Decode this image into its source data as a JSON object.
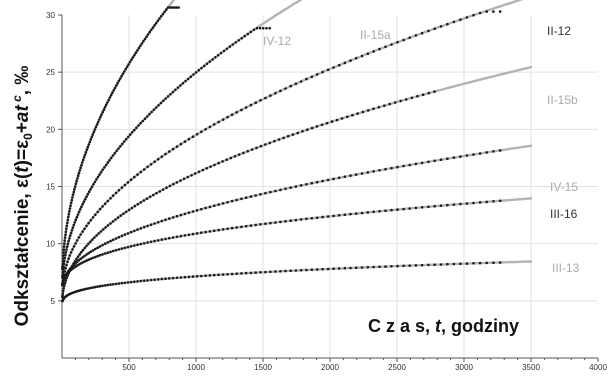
{
  "chart_data": {
    "type": "line",
    "xlabel_parts": [
      "C z a s, ",
      "t",
      ", godziny"
    ],
    "ylabel_parts": [
      "Odkształcenie, ε(",
      "t",
      ")=ε",
      "0",
      "+",
      "at",
      " c",
      ", ‰"
    ],
    "xlim": [
      0,
      4000
    ],
    "ylim": [
      0,
      30
    ],
    "x_ticks": [
      500,
      1000,
      1500,
      2000,
      2500,
      3000,
      3500,
      4000
    ],
    "y_ticks": [
      5,
      10,
      15,
      20,
      25,
      30
    ],
    "grid": true,
    "colors": {
      "fit": "#b3b3b3",
      "measured": "#1a1a1a",
      "label_dark": "#333333",
      "label_light": "#aaaaaa"
    },
    "series": [
      {
        "name": "IV-12",
        "label_color": "label_light",
        "fit": {
          "e0": 6.2,
          "a": 0.93,
          "c": 0.49,
          "xmax": 1100
        },
        "measured": {
          "xmax": 870,
          "plateau_from": 790
        }
      },
      {
        "name": "II-15a",
        "label_color": "label_light",
        "fit": {
          "e0": 6.0,
          "a": 0.6,
          "c": 0.5,
          "xmax": 2000
        },
        "measured": {
          "xmax": 1550,
          "plateau_from": 1450
        }
      },
      {
        "name": "II-12",
        "label_color": "label_dark",
        "fit": {
          "e0": 5.6,
          "a": 0.44,
          "c": 0.5,
          "xmax": 3500
        },
        "measured": {
          "xmax": 3270,
          "plateau_from": 3150
        }
      },
      {
        "name": "II-15b",
        "label_color": "label_light",
        "fit": {
          "e0": 4.6,
          "a": 0.45,
          "c": 0.47,
          "xmax": 3500
        },
        "measured": {
          "xmax": 2780
        }
      },
      {
        "name": "IV-15",
        "label_color": "label_light",
        "fit": {
          "e0": 6.0,
          "a": 0.25,
          "c": 0.48,
          "xmax": 3500
        },
        "measured": {
          "xmax": 3270
        }
      },
      {
        "name": "III-16",
        "label_color": "label_dark",
        "fit": {
          "e0": 6.0,
          "a": 0.33,
          "c": 0.39,
          "xmax": 3500
        },
        "measured": {
          "xmax": 3270
        }
      },
      {
        "name": "III-13",
        "label_color": "label_light",
        "fit": {
          "e0": 4.6,
          "a": 0.26,
          "c": 0.33,
          "xmax": 3500
        },
        "measured": {
          "xmax": 3270
        }
      }
    ]
  }
}
